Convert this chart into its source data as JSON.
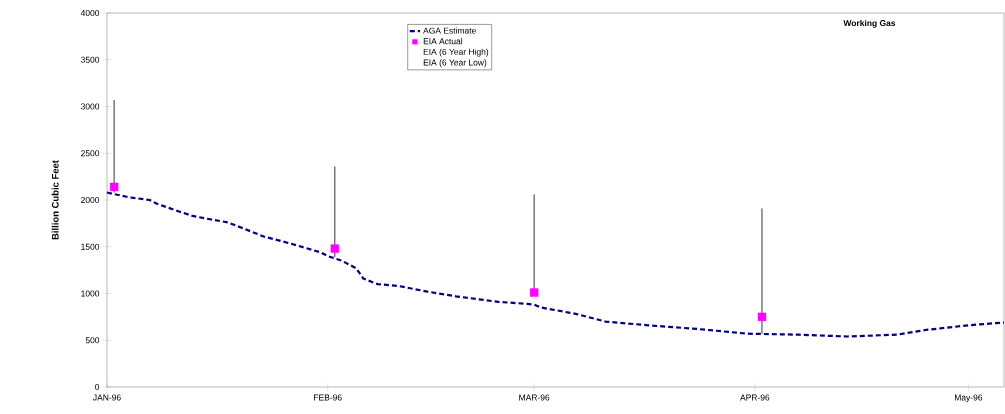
{
  "chart_data": {
    "type": "line",
    "title": "Working Gas",
    "ylabel": "Billion Cubic Feet",
    "xlim": [
      "1996-01-01",
      "1996-05-06"
    ],
    "ylim": [
      0,
      4000
    ],
    "xticks": [
      {
        "value": "1996-01-01",
        "label": "JAN-96"
      },
      {
        "value": "1996-02-01",
        "label": "FEB-96"
      },
      {
        "value": "1996-03-01",
        "label": "MAR-96"
      },
      {
        "value": "1996-04-01",
        "label": "APR-96"
      },
      {
        "value": "1996-05-01",
        "label": "May-96"
      }
    ],
    "yticks": [
      0,
      500,
      1000,
      1500,
      2000,
      2500,
      3000,
      3500,
      4000
    ],
    "legend": "top",
    "series": [
      {
        "name": "AGA Estimate",
        "color": "#000080",
        "line_style": "dashed",
        "marker": "none",
        "x": [
          "1996-01-01",
          "1996-01-04",
          "1996-01-07",
          "1996-01-08",
          "1996-01-11",
          "1996-01-13",
          "1996-01-15",
          "1996-01-18",
          "1996-01-20",
          "1996-01-23",
          "1996-01-27",
          "1996-01-31",
          "1996-02-01",
          "1996-02-03",
          "1996-02-05",
          "1996-02-06",
          "1996-02-08",
          "1996-02-11",
          "1996-02-15",
          "1996-02-19",
          "1996-02-25",
          "1996-02-29",
          "1996-03-01",
          "1996-03-02",
          "1996-03-07",
          "1996-03-11",
          "1996-03-17",
          "1996-03-24",
          "1996-03-31",
          "1996-04-07",
          "1996-04-14",
          "1996-04-21",
          "1996-04-25",
          "1996-05-01",
          "1996-05-06"
        ],
        "values": [
          2080,
          2030,
          2000,
          1960,
          1880,
          1830,
          1800,
          1760,
          1700,
          1610,
          1530,
          1440,
          1400,
          1350,
          1270,
          1160,
          1100,
          1080,
          1020,
          970,
          910,
          890,
          880,
          850,
          780,
          700,
          660,
          620,
          570,
          560,
          540,
          560,
          610,
          660,
          690
        ]
      },
      {
        "name": "EIA Actual",
        "type": "scatter",
        "color": "#ff00ff",
        "marker": "square",
        "x": [
          "1996-01-02",
          "1996-02-02",
          "1996-03-01",
          "1996-04-02"
        ],
        "values": [
          2140,
          1480,
          1010,
          750
        ],
        "errors": [
          [
            2080,
            3070
          ],
          [
            1390,
            2360
          ],
          [
            1000,
            2060
          ],
          [
            570,
            1910
          ]
        ]
      }
    ],
    "annotations": [
      "EIA (6 Year High)",
      "EIA (6 Year Low)"
    ]
  }
}
